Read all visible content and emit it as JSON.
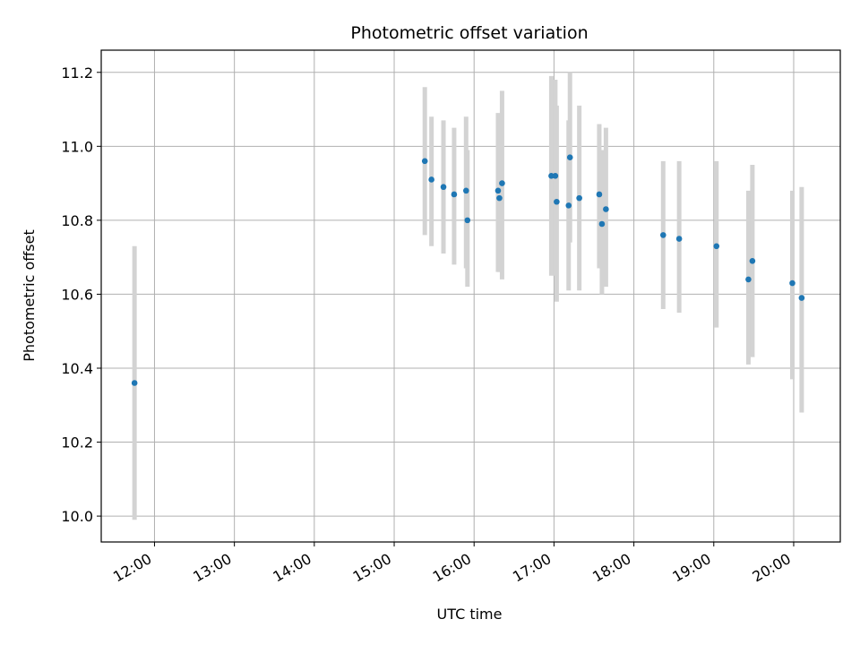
{
  "chart_data": {
    "type": "scatter",
    "title": "Photometric offset variation",
    "xlabel": "UTC time",
    "ylabel": "Photometric offset",
    "xlim": [
      "11:20",
      "20:35"
    ],
    "ylim": [
      9.93,
      11.26
    ],
    "x_ticks": [
      "12:00",
      "13:00",
      "14:00",
      "15:00",
      "16:00",
      "17:00",
      "18:00",
      "19:00",
      "20:00"
    ],
    "y_ticks": [
      "10.0",
      "10.2",
      "10.4",
      "10.6",
      "10.8",
      "11.0",
      "11.2"
    ],
    "grid": true,
    "legend": "none",
    "colors": {
      "point": "#1f77b4",
      "error_bar": "#d3d3d3",
      "grid": "#b0b0b0"
    },
    "points": [
      {
        "x": "11:45",
        "y": 10.36,
        "y_low": 9.99,
        "y_high": 10.73
      },
      {
        "x": "15:23",
        "y": 10.96,
        "y_low": 10.76,
        "y_high": 11.16
      },
      {
        "x": "15:28",
        "y": 10.91,
        "y_low": 10.73,
        "y_high": 11.08
      },
      {
        "x": "15:37",
        "y": 10.89,
        "y_low": 10.71,
        "y_high": 11.07
      },
      {
        "x": "15:45",
        "y": 10.87,
        "y_low": 10.68,
        "y_high": 11.05
      },
      {
        "x": "15:54",
        "y": 10.88,
        "y_low": 10.67,
        "y_high": 11.08
      },
      {
        "x": "15:55",
        "y": 10.8,
        "y_low": 10.62,
        "y_high": 10.99
      },
      {
        "x": "16:18",
        "y": 10.88,
        "y_low": 10.66,
        "y_high": 11.09
      },
      {
        "x": "16:19",
        "y": 10.86,
        "y_low": 10.66,
        "y_high": 11.07
      },
      {
        "x": "16:21",
        "y": 10.9,
        "y_low": 10.64,
        "y_high": 11.15
      },
      {
        "x": "16:58",
        "y": 10.92,
        "y_low": 10.65,
        "y_high": 11.19
      },
      {
        "x": "17:01",
        "y": 10.92,
        "y_low": 10.65,
        "y_high": 11.18
      },
      {
        "x": "17:02",
        "y": 10.85,
        "y_low": 10.58,
        "y_high": 11.11
      },
      {
        "x": "17:11",
        "y": 10.84,
        "y_low": 10.61,
        "y_high": 11.07
      },
      {
        "x": "17:12",
        "y": 10.97,
        "y_low": 10.74,
        "y_high": 11.2
      },
      {
        "x": "17:19",
        "y": 10.86,
        "y_low": 10.61,
        "y_high": 11.11
      },
      {
        "x": "17:34",
        "y": 10.87,
        "y_low": 10.67,
        "y_high": 11.06
      },
      {
        "x": "17:36",
        "y": 10.79,
        "y_low": 10.6,
        "y_high": 10.99
      },
      {
        "x": "17:39",
        "y": 10.83,
        "y_low": 10.62,
        "y_high": 11.05
      },
      {
        "x": "18:22",
        "y": 10.76,
        "y_low": 10.56,
        "y_high": 10.96
      },
      {
        "x": "18:34",
        "y": 10.75,
        "y_low": 10.55,
        "y_high": 10.96
      },
      {
        "x": "19:02",
        "y": 10.73,
        "y_low": 10.51,
        "y_high": 10.96
      },
      {
        "x": "19:26",
        "y": 10.64,
        "y_low": 10.41,
        "y_high": 10.88
      },
      {
        "x": "19:29",
        "y": 10.69,
        "y_low": 10.43,
        "y_high": 10.95
      },
      {
        "x": "19:59",
        "y": 10.63,
        "y_low": 10.37,
        "y_high": 10.88
      },
      {
        "x": "20:06",
        "y": 10.59,
        "y_low": 10.28,
        "y_high": 10.89
      }
    ]
  }
}
